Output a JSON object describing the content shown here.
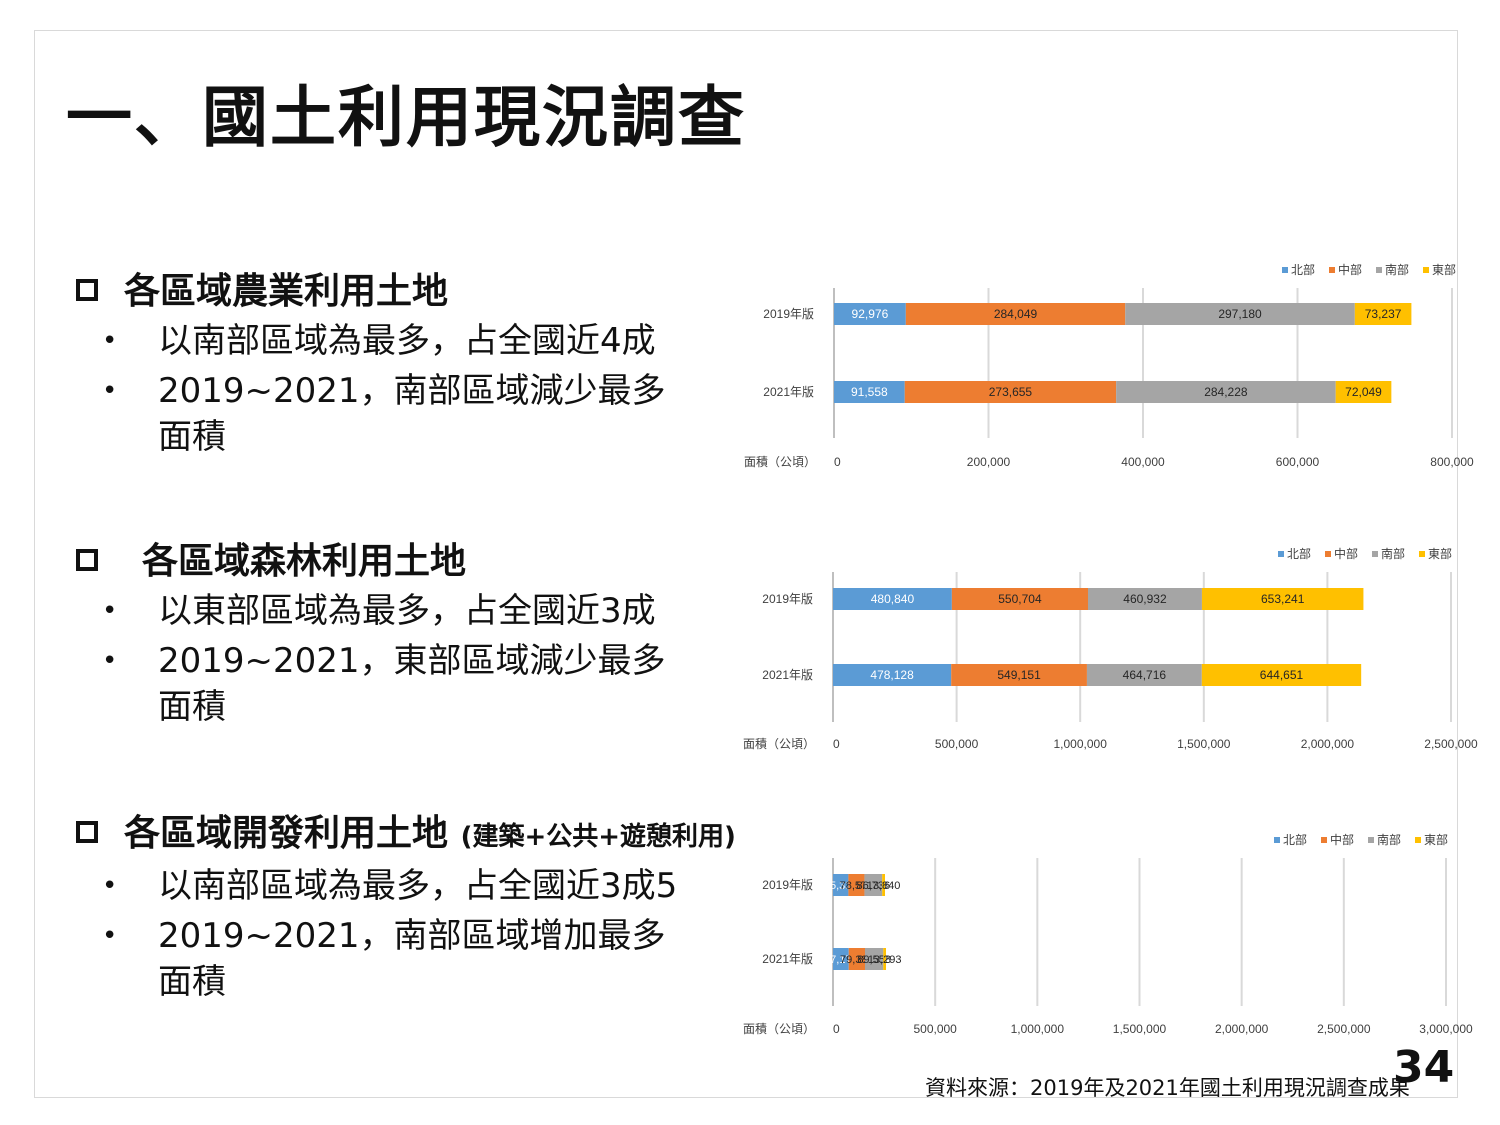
{
  "title": "一、國土利用現況調查",
  "sections": [
    {
      "heading": "各區域農業利用土地",
      "heading_note": "",
      "bullets": [
        "以南部區域為最多，占全國近4成",
        "2019~2021，南部區域減少最多面積"
      ]
    },
    {
      "heading": "各區域森林利用土地",
      "heading_note": "",
      "bullets": [
        "以東部區域為最多，占全國近3成",
        "2019~2021，東部區域減少最多面積"
      ]
    },
    {
      "heading": "各區域開發利用土地",
      "heading_note": "(建築+公共+遊憩利用)",
      "bullets": [
        "以南部區域為最多，占全國近3成5",
        "2019~2021，南部區域增加最多面積"
      ]
    }
  ],
  "chart_data": [
    {
      "type": "bar",
      "orientation": "horizontal",
      "stacked": true,
      "categories": [
        "2019年版",
        "2021年版"
      ],
      "series": [
        {
          "name": "北部",
          "values": [
            92976,
            91558
          ]
        },
        {
          "name": "中部",
          "values": [
            284049,
            273655
          ]
        },
        {
          "name": "南部",
          "values": [
            297180,
            284228
          ]
        },
        {
          "name": "東部",
          "values": [
            73237,
            72049
          ]
        }
      ],
      "data_labels": [
        [
          "92,976",
          "284,049",
          "297,180",
          "73,237"
        ],
        [
          "91,558",
          "273,655",
          "284,228",
          "72,049"
        ]
      ],
      "xlabel": "面積（公頃）",
      "xlim": [
        0,
        800000
      ],
      "ticks": [
        "0",
        "200,000",
        "400,000",
        "600,000",
        "800,000"
      ],
      "tick_values": [
        0,
        200000,
        400000,
        600000,
        800000
      ],
      "legend_position": "top-right",
      "grid": true
    },
    {
      "type": "bar",
      "orientation": "horizontal",
      "stacked": true,
      "categories": [
        "2019年版",
        "2021年版"
      ],
      "series": [
        {
          "name": "北部",
          "values": [
            480840,
            478128
          ]
        },
        {
          "name": "中部",
          "values": [
            550704,
            549151
          ]
        },
        {
          "name": "南部",
          "values": [
            460932,
            464716
          ]
        },
        {
          "name": "東部",
          "values": [
            653241,
            644651
          ]
        }
      ],
      "data_labels": [
        [
          "480,840",
          "550,704",
          "460,932",
          "653,241"
        ],
        [
          "478,128",
          "549,151",
          "464,716",
          "644,651"
        ]
      ],
      "xlabel": "面積（公頃）",
      "xlim": [
        0,
        2500000
      ],
      "ticks": [
        "0",
        "500,000",
        "1,000,000",
        "1,500,000",
        "2,000,000",
        "2,500,000"
      ],
      "tick_values": [
        0,
        500000,
        1000000,
        1500000,
        2000000,
        2500000
      ],
      "legend_position": "top-right",
      "grid": true
    },
    {
      "type": "bar",
      "orientation": "horizontal",
      "stacked": true,
      "categories": [
        "2019年版",
        "2021年版"
      ],
      "series": [
        {
          "name": "北部",
          "values": [
            75336,
            77173
          ]
        },
        {
          "name": "中部",
          "values": [
            78573,
            79389
          ]
        },
        {
          "name": "南部",
          "values": [
            86736,
            89558
          ]
        },
        {
          "name": "東部",
          "values": [
            13840,
            13293
          ]
        }
      ],
      "data_labels": [
        [
          "75,336",
          "78,573",
          "86,736",
          "13,840"
        ],
        [
          "77,173",
          "79,389",
          "89,558",
          "13,293"
        ]
      ],
      "xlabel": "面積（公頃）",
      "xlim": [
        0,
        3000000
      ],
      "ticks": [
        "0",
        "500,000",
        "1,000,000",
        "1,500,000",
        "2,000,000",
        "2,500,000",
        "3,000,000"
      ],
      "tick_values": [
        0,
        500000,
        1000000,
        1500000,
        2000000,
        2500000,
        3000000
      ],
      "legend_position": "top-right",
      "grid": true
    }
  ],
  "colors": {
    "北部": "#5b9bd5",
    "中部": "#ed7d31",
    "南部": "#a5a5a5",
    "東部": "#ffc000"
  },
  "source": "資料來源：2019年及2021年國土利用現況調查成果",
  "page_number": "34"
}
